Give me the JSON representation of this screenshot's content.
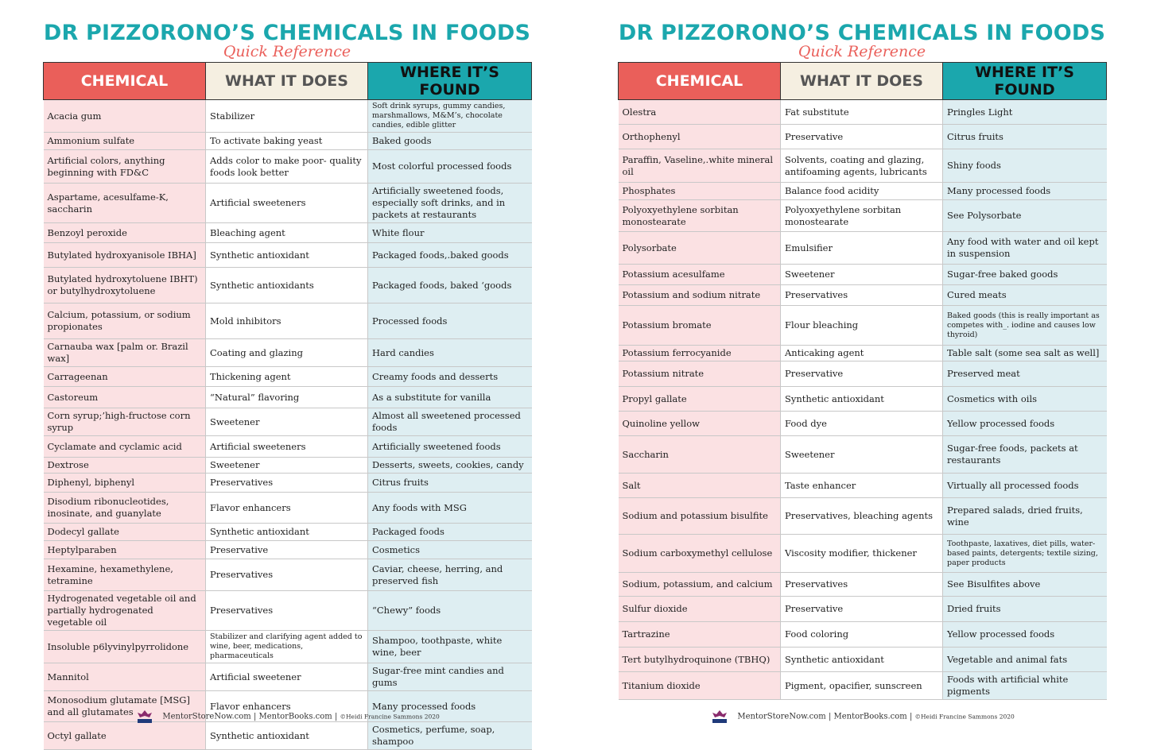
{
  "colors": {
    "teal": "#1ba7ad",
    "coral": "#ea5f5a",
    "cream": "#f5efe1",
    "pink_cell": "#fbe1e3",
    "blue_cell": "#deeef2"
  },
  "left": {
    "title": "DR PIZZORONO’S CHEMICALS IN FOODS",
    "subtitle": "Quick Reference",
    "headers": {
      "chemical": "CHEMICAL",
      "what": "WHAT IT DOES",
      "where": "WHERE IT’S FOUND"
    },
    "rows": [
      [
        "Acacia gum",
        "Stabilizer",
        "Soft drink syrups, gummy candies, marshmallows, M&M’s, chocolate candies, edible glitter"
      ],
      [
        "Ammonium sulfate",
        "To activate baking yeast",
        "Baked goods"
      ],
      [
        "Artificial colors, anything beginning with FD&C",
        "Adds color to make poor- quality foods look better",
        "Most colorful processed foods"
      ],
      [
        "Aspartame, acesulfame-K, saccharin",
        "Artificial sweeteners",
        "Artificially sweetened foods, especially soft drinks, and in packets at restaurants"
      ],
      [
        "Benzoyl peroxide",
        "Bleaching agent",
        "White flour"
      ],
      [
        "Butylated hydroxyanisole IBHA]",
        "Synthetic antioxidant",
        "Packaged foods,.baked goods"
      ],
      [
        "Butylated hydroxytoluene IBHT) or butylhydroxytoluene",
        "Synthetic antioxidants",
        "Packaged foods, baked ‘goods"
      ],
      [
        "Calcium, potassium, or sodium propionates",
        "Mold inhibitors",
        "Processed foods"
      ],
      [
        "Carnauba wax [palm or. Brazil wax]",
        "Coating and glazing",
        "Hard candies"
      ],
      [
        "Carrageenan",
        "Thickening agent",
        "Creamy foods and desserts"
      ],
      [
        "Castoreum",
        "“Natural” flavoring",
        "As a substitute for vanilla"
      ],
      [
        "Corn syrup;’high-fructose corn syrup",
        "Sweetener",
        "Almost all sweetened processed foods"
      ],
      [
        "Cyclamate and cyclamic acid",
        "Artificial sweeteners",
        "Artificially sweetened foods"
      ],
      [
        "Dextrose",
        "Sweetener",
        "Desserts, sweets, cookies, candy"
      ],
      [
        "Diphenyl, biphenyl",
        "Preservatives",
        "Citrus fruits"
      ],
      [
        "Disodium ribonucleotides, inosinate, and guanylate",
        "Flavor enhancers",
        "Any foods with MSG"
      ],
      [
        "Dodecyl gallate",
        "Synthetic antioxidant",
        "Packaged foods"
      ],
      [
        "Heptylparaben",
        "Preservative",
        "Cosmetics"
      ],
      [
        "Hexamine, hexamethylene, tetramine",
        "Preservatives",
        "Caviar, cheese, herring, and preserved fish"
      ],
      [
        "Hydrogenated vegetable oil and partially hydrogenated vegetable oil",
        "Preservatives",
        "“Chewy” foods"
      ],
      [
        "Insoluble p6lyvinylpyrrolidone",
        "Stabilizer and clarifying agent added to wine, beer, medications, pharmaceuticals",
        "Shampoo, toothpaste, white wine, beer"
      ],
      [
        "Mannitol",
        "Artificial sweetener",
        "Sugar-free mint candies and gums"
      ],
      [
        "Monosodium glutamate [MSG] and all glutamates",
        "Flavor enhancers",
        "Many processed foods"
      ],
      [
        "Octyl gallate",
        "Synthetic antioxidant",
        "Cosmetics, perfume, soap, shampoo"
      ]
    ],
    "footer": {
      "text": "MentorStoreNow.com | MentorBooks.com | ",
      "copy": "©Heidi Francine Sammons 2020"
    }
  },
  "right": {
    "title": "DR PIZZORONO’S CHEMICALS IN FOODS",
    "subtitle": "Quick Reference",
    "headers": {
      "chemical": "CHEMICAL",
      "what": "WHAT IT DOES",
      "where": "WHERE IT’S FOUND"
    },
    "rows": [
      [
        "Olestra",
        "Fat substitute",
        "Pringles Light"
      ],
      [
        "Orthophenyl",
        "Preservative",
        "Citrus fruits"
      ],
      [
        "Paraffin, Vaseline,.white mineral oil",
        "Solvents, coating and glazing, antifoaming agents, lubricants",
        "Shiny foods"
      ],
      [
        "Phosphates",
        "Balance food acidity",
        "Many processed foods"
      ],
      [
        "Polyoxyethylene sorbitan monostearate",
        "Polyoxyethylene sorbitan monostearate",
        "See Polysorbate"
      ],
      [
        "Polysorbate",
        "Emulsifier",
        "Any food with water and oil kept in suspension"
      ],
      [
        "Potassium acesulfame",
        "Sweetener",
        "Sugar-free baked goods"
      ],
      [
        "Potassium and sodium nitrate",
        "Preservatives",
        "Cured meats"
      ],
      [
        "Potassium bromate",
        "Flour bleaching",
        "Baked goods (this is really important as competes with_. iodine and causes low thyroid)"
      ],
      [
        "Potassium ferrocyanide",
        "Anticaking agent",
        "Table salt (some sea salt as well]"
      ],
      [
        "Potassium nitrate",
        "Preservative",
        "Preserved meat"
      ],
      [
        "Propyl gallate",
        "Synthetic antioxidant",
        "Cosmetics with oils"
      ],
      [
        "Quinoline yellow",
        "Food dye",
        "Yellow processed foods"
      ],
      [
        "Saccharin",
        "Sweetener",
        "Sugar-free foods, packets at restaurants"
      ],
      [
        "Salt",
        "Taste enhancer",
        "Virtually all processed foods"
      ],
      [
        "Sodium and potassium bisulfite",
        "Preservatives, bleaching agents",
        "Prepared salads, dried fruits, wine"
      ],
      [
        "Sodium carboxymethyl cellulose",
        "Viscosity modifier, thickener",
        "Toothpaste, laxatives, diet pills, water-based paints, detergents; textile sizing, paper products"
      ],
      [
        "Sodium, potassium, and calcium",
        "Preservatives",
        "See Bisulfites above"
      ],
      [
        "Sulfur dioxide",
        "Preservative",
        "Dried fruits"
      ],
      [
        "Tartrazine",
        "Food coloring",
        "Yellow processed foods"
      ],
      [
        "Tert butylhydroquinone (TBHQ)",
        "Synthetic antioxidant",
        "Vegetable and animal fats"
      ],
      [
        "Titanium dioxide",
        "Pigment,  opacifier, sunscreen",
        "Foods with artificial white pigments"
      ]
    ],
    "footer": {
      "text": "MentorStoreNow.com | MentorBooks.com | ",
      "copy": "©Heidi Francine Sammons 2020"
    }
  }
}
